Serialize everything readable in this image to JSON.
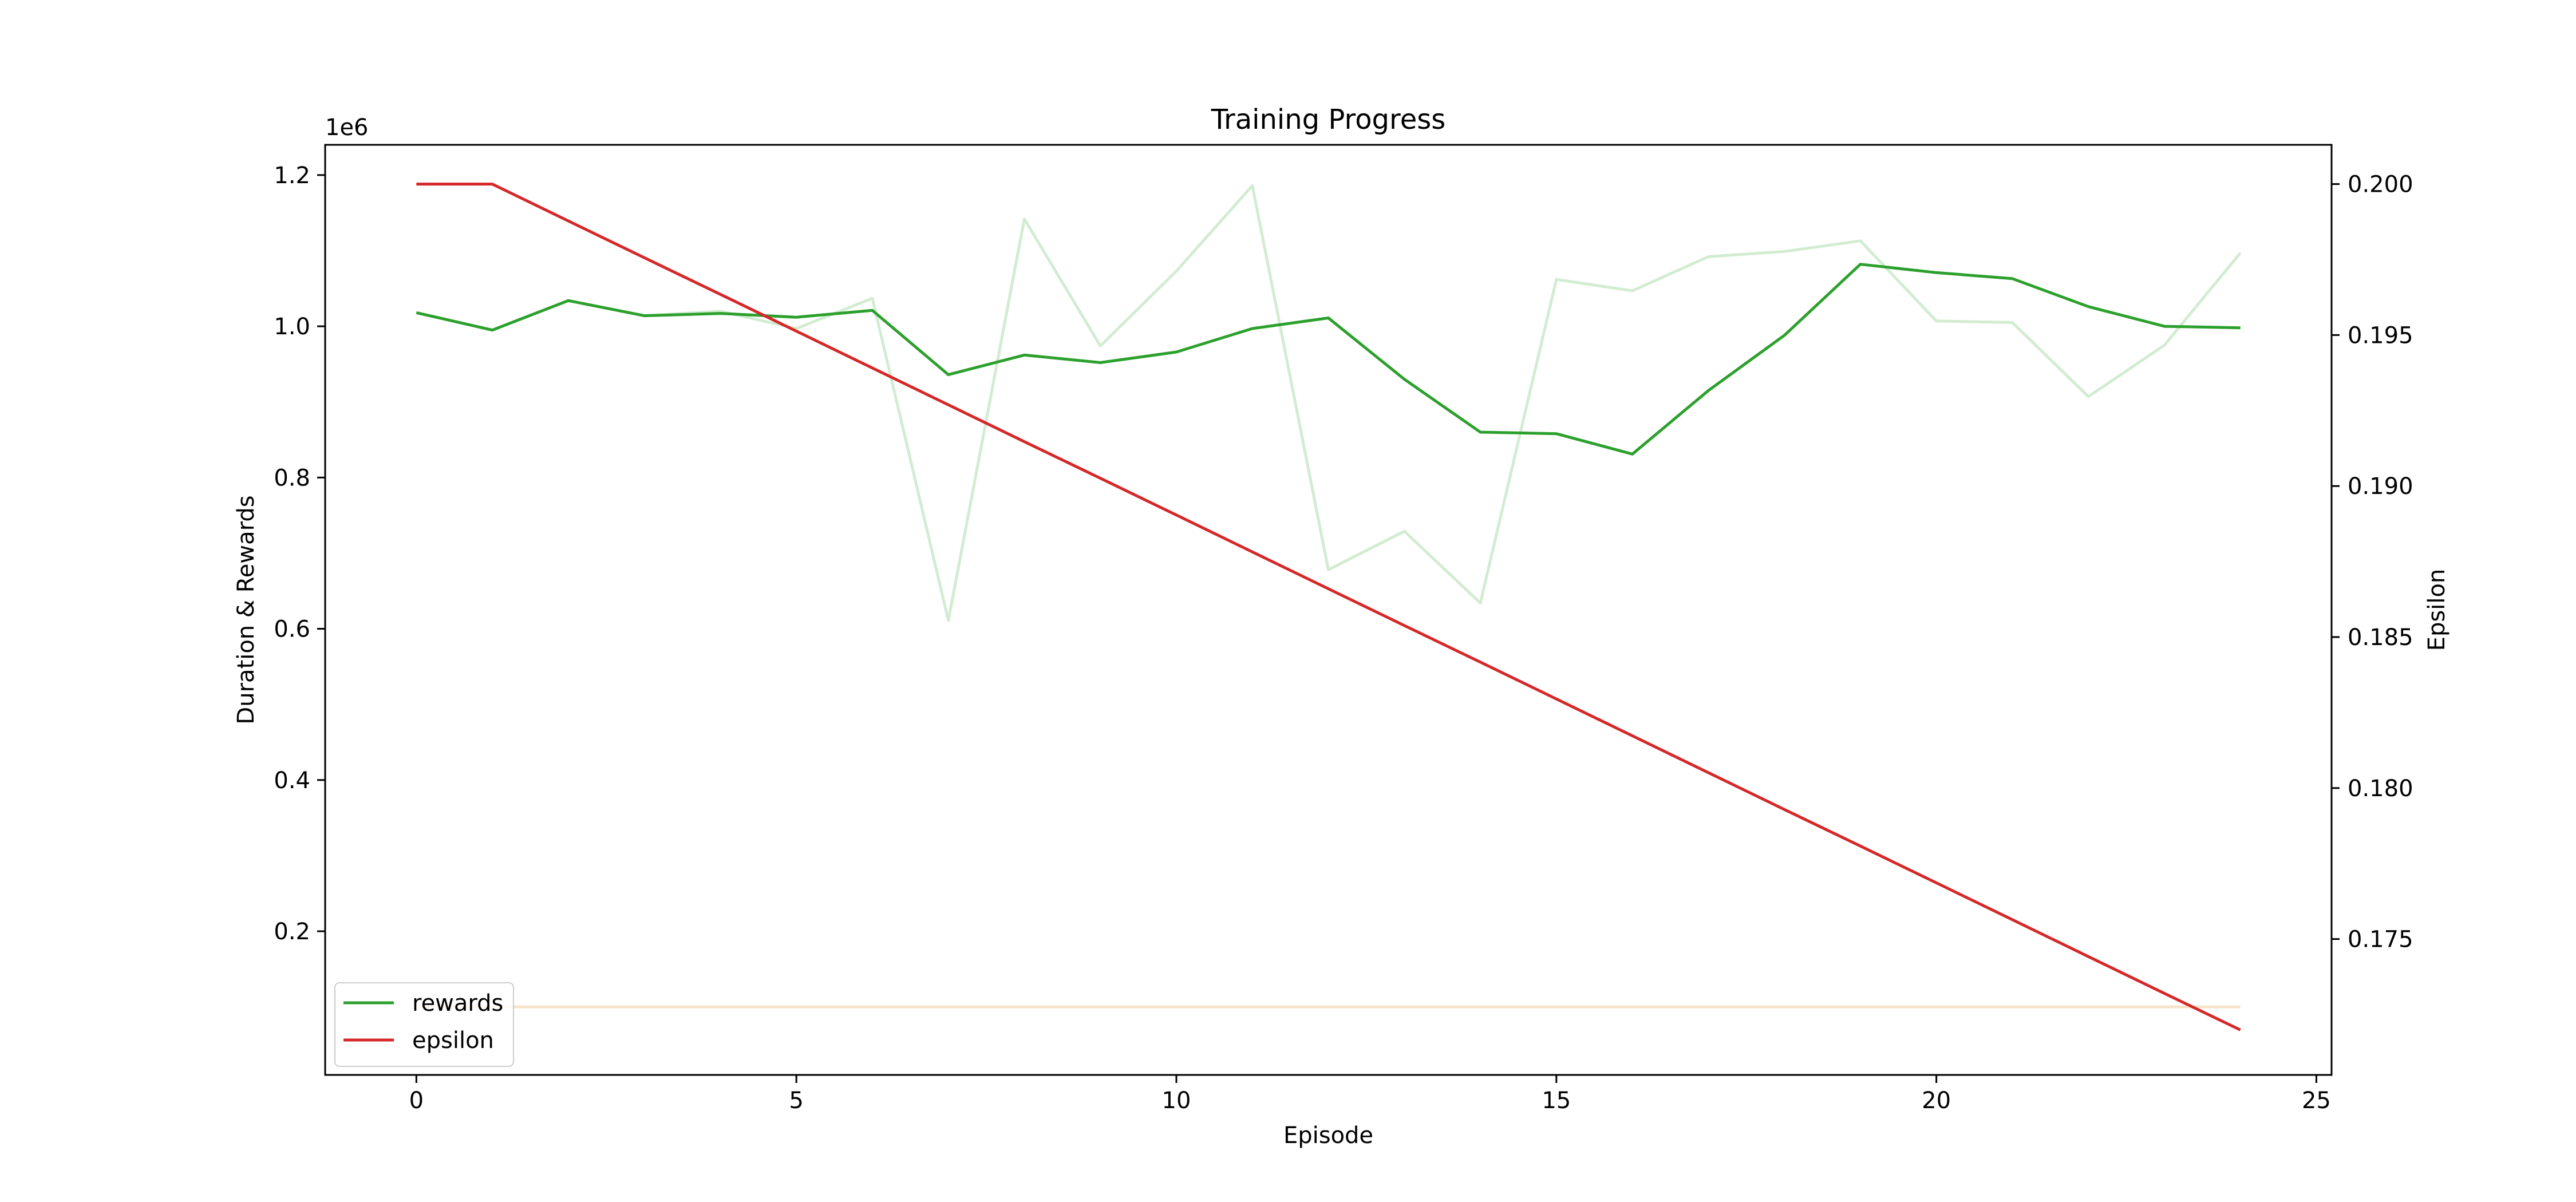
{
  "chart_data": {
    "type": "line",
    "title": "Training Progress",
    "xlabel": "Episode",
    "ylabel_left": "Duration & Rewards",
    "ylabel_right": "Epsilon",
    "left_offset_label": "1e6",
    "xlim": [
      -1.2,
      25.2
    ],
    "ylim_left": [
      0.01,
      1.24
    ],
    "ylim_right": [
      0.1705,
      0.2013
    ],
    "x_ticks": [
      0,
      5,
      10,
      15,
      20,
      25
    ],
    "x_tick_labels": [
      "0",
      "5",
      "10",
      "15",
      "20",
      "25"
    ],
    "y_left_ticks": [
      0.2,
      0.4,
      0.6,
      0.8,
      1.0,
      1.2
    ],
    "y_left_tick_labels": [
      "0.2",
      "0.4",
      "0.6",
      "0.8",
      "1.0",
      "1.2"
    ],
    "y_right_ticks": [
      0.175,
      0.18,
      0.185,
      0.19,
      0.195,
      0.2
    ],
    "y_right_tick_labels": [
      "0.175",
      "0.180",
      "0.185",
      "0.190",
      "0.195",
      "0.200"
    ],
    "grid": false,
    "legend_position": "lower-left",
    "legend": [
      "rewards",
      "epsilon"
    ],
    "colors": {
      "rewards": "#2ca02c",
      "rewards_raw": "#d2ecd2",
      "duration": "#f7e3c7",
      "epsilon": "#d62728"
    },
    "x": [
      0,
      1,
      2,
      3,
      4,
      5,
      6,
      7,
      8,
      9,
      10,
      11,
      12,
      13,
      14,
      15,
      16,
      17,
      18,
      19,
      20,
      21,
      22,
      23,
      24
    ],
    "series": [
      {
        "name": "rewards",
        "axis": "left",
        "values": [
          1.018,
          0.995,
          1.034,
          1.014,
          1.017,
          1.012,
          1.021,
          0.936,
          0.962,
          0.952,
          0.966,
          0.997,
          1.011,
          0.93,
          0.86,
          0.858,
          0.831,
          0.915,
          0.988,
          1.082,
          1.071,
          1.063,
          1.026,
          1.0,
          0.998
        ]
      },
      {
        "axis": "left",
        "values": [
          1.018,
          0.995,
          1.034,
          1.014,
          1.02,
          0.997,
          1.037,
          0.611,
          1.142,
          0.974,
          1.073,
          1.186,
          0.678,
          0.729,
          0.634,
          1.062,
          1.047,
          1.092,
          1.099,
          1.113,
          1.007,
          1.005,
          0.907,
          0.975,
          1.097
        ]
      },
      {
        "axis": "left",
        "values": [
          0.1,
          0.1,
          0.1,
          0.1,
          0.1,
          0.1,
          0.1,
          0.1,
          0.1,
          0.1,
          0.1,
          0.1,
          0.1,
          0.1,
          0.1,
          0.1,
          0.1,
          0.1,
          0.1,
          0.1,
          0.1,
          0.1,
          0.1,
          0.1,
          0.1
        ]
      },
      {
        "name": "epsilon",
        "axis": "right",
        "values": [
          0.2,
          0.2,
          0.19878,
          0.19756,
          0.19635,
          0.19513,
          0.19391,
          0.19269,
          0.19147,
          0.19026,
          0.18904,
          0.18782,
          0.1866,
          0.18538,
          0.18417,
          0.18295,
          0.18173,
          0.18051,
          0.17929,
          0.17808,
          0.17686,
          0.17564,
          0.17442,
          0.1732,
          0.17199
        ]
      }
    ]
  }
}
